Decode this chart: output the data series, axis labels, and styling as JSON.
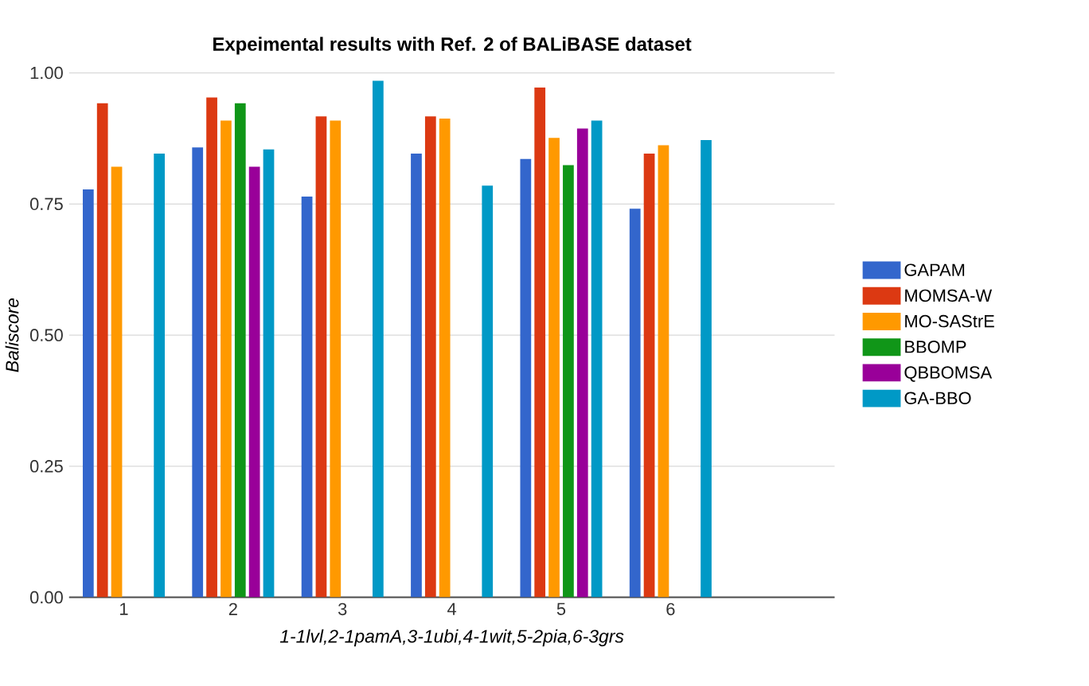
{
  "chart_data": {
    "type": "bar",
    "title": "Expeimental results with Ref. 2 of BALiBASE dataset",
    "xlabel": "1-1lvl,2-1pamA,3-1ubi,4-1wit,5-2pia,6-3grs",
    "ylabel": "Baliscore",
    "categories": [
      "1",
      "2",
      "3",
      "4",
      "5",
      "6",
      null
    ],
    "series": [
      {
        "name": "GAPAM",
        "color": "#3366cc",
        "values": [
          0.778,
          0.858,
          0.764,
          0.846,
          0.836,
          0.741,
          null
        ]
      },
      {
        "name": "MOMSA-W",
        "color": "#dc3912",
        "values": [
          0.942,
          0.953,
          0.917,
          0.917,
          0.972,
          0.846,
          null
        ]
      },
      {
        "name": "MO-SAStrE",
        "color": "#ff9900",
        "values": [
          0.821,
          0.909,
          0.909,
          0.913,
          0.876,
          0.862,
          null
        ]
      },
      {
        "name": "BBOMP",
        "color": "#109618",
        "values": [
          null,
          0.942,
          null,
          null,
          0.824,
          null,
          null
        ]
      },
      {
        "name": "QBBOMSA",
        "color": "#990099",
        "values": [
          null,
          0.821,
          null,
          null,
          0.894,
          null,
          null
        ]
      },
      {
        "name": "GA-BBO",
        "color": "#0099c6",
        "values": [
          0.846,
          0.854,
          0.985,
          0.785,
          0.909,
          0.872,
          null
        ]
      }
    ],
    "ylim": [
      0,
      1
    ],
    "yticks": [
      {
        "value": 0,
        "label": "0.00"
      },
      {
        "value": 0.25,
        "label": "0.25"
      },
      {
        "value": 0.5,
        "label": "0.50"
      },
      {
        "value": 0.75,
        "label": "0.75"
      },
      {
        "value": 1,
        "label": "1.00"
      }
    ],
    "grid": "y",
    "legend": "right"
  }
}
